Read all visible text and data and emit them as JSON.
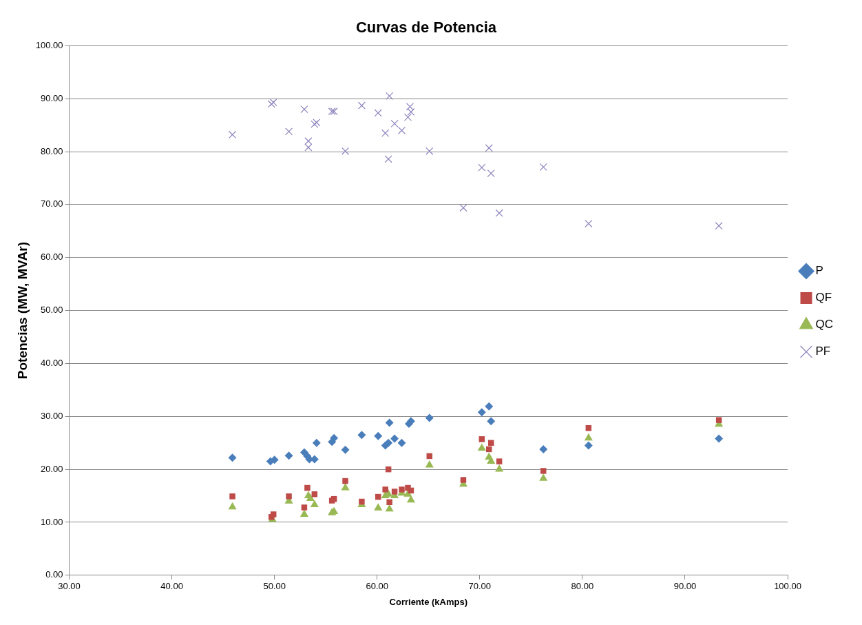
{
  "chart_data": {
    "type": "scatter",
    "title": "Curvas de Potencia",
    "xlabel": "Corriente (kAmps)",
    "ylabel": "Potencias (MW, MVAr)",
    "xlim": [
      30,
      100
    ],
    "xticks": [
      {
        "value": 30,
        "label": "30.00"
      },
      {
        "value": 40,
        "label": "40.00"
      },
      {
        "value": 50,
        "label": "50.00"
      },
      {
        "value": 60,
        "label": "60.00"
      },
      {
        "value": 70,
        "label": "70.00"
      },
      {
        "value": 80,
        "label": "80.00"
      },
      {
        "value": 90,
        "label": "90.00"
      },
      {
        "value": 100,
        "label": "100.00"
      }
    ],
    "ylim": [
      0,
      100
    ],
    "yticks": [
      {
        "value": 0,
        "label": "0.00"
      },
      {
        "value": 10,
        "label": "10.00"
      },
      {
        "value": 20,
        "label": "20.00"
      },
      {
        "value": 30,
        "label": "30.00"
      },
      {
        "value": 40,
        "label": "40.00"
      },
      {
        "value": 50,
        "label": "50.00"
      },
      {
        "value": 60,
        "label": "60.00"
      },
      {
        "value": 70,
        "label": "70.00"
      },
      {
        "value": 80,
        "label": "80.00"
      },
      {
        "value": 90,
        "label": "90.00"
      },
      {
        "value": 100,
        "label": "100.00"
      }
    ],
    "grid": "y",
    "legend": "right",
    "series": [
      {
        "name": "P",
        "color": "#4a7ebb",
        "marker": "diamond",
        "x": [
          45.9,
          49.6,
          50.0,
          51.4,
          52.9,
          53.2,
          53.4,
          53.9,
          54.1,
          55.6,
          55.8,
          56.9,
          58.5,
          60.1,
          60.8,
          61.1,
          61.2,
          61.7,
          62.4,
          63.1,
          63.3,
          65.1,
          70.2,
          70.9,
          71.1,
          76.2,
          80.6,
          93.3
        ],
        "values": [
          22.2,
          21.5,
          21.8,
          22.6,
          23.2,
          22.5,
          21.9,
          21.9,
          25.0,
          25.2,
          25.9,
          23.7,
          26.5,
          26.3,
          24.5,
          25.0,
          28.8,
          25.8,
          25.0,
          28.6,
          29.1,
          29.7,
          30.8,
          31.9,
          29.1,
          23.8,
          24.5,
          25.8
        ]
      },
      {
        "name": "QF",
        "color": "#be4b48",
        "marker": "square",
        "x": [
          45.9,
          49.7,
          49.9,
          51.4,
          52.9,
          53.2,
          53.9,
          55.6,
          55.8,
          56.9,
          58.5,
          60.1,
          60.8,
          61.1,
          61.2,
          61.7,
          62.4,
          63.0,
          63.3,
          65.1,
          68.4,
          70.2,
          70.9,
          71.1,
          71.9,
          76.2,
          80.6,
          93.3
        ],
        "values": [
          14.9,
          11.0,
          11.5,
          14.9,
          12.8,
          16.5,
          15.3,
          14.1,
          14.4,
          17.8,
          13.9,
          14.8,
          16.2,
          20.0,
          13.8,
          15.8,
          16.2,
          16.5,
          16.0,
          22.5,
          18.0,
          25.7,
          23.8,
          25.0,
          21.5,
          19.7,
          27.8,
          29.3
        ]
      },
      {
        "name": "QC",
        "color": "#98b954",
        "marker": "triangle",
        "x": [
          45.9,
          49.8,
          51.4,
          52.9,
          53.3,
          53.5,
          53.9,
          55.6,
          55.8,
          56.9,
          58.5,
          60.1,
          60.8,
          61.1,
          61.2,
          61.7,
          62.4,
          63.0,
          63.3,
          65.1,
          68.4,
          70.2,
          70.9,
          71.1,
          71.9,
          76.2,
          80.6,
          93.3
        ],
        "values": [
          12.9,
          10.5,
          14.0,
          11.5,
          15.0,
          14.5,
          13.3,
          11.8,
          12.0,
          16.5,
          13.3,
          12.7,
          15.0,
          15.3,
          12.5,
          15.0,
          15.5,
          15.3,
          14.2,
          20.8,
          17.2,
          24.0,
          22.3,
          21.5,
          20.0,
          18.3,
          25.9,
          28.5
        ]
      },
      {
        "name": "PF",
        "color": "#8c82bd",
        "marker": "cross",
        "x": [
          45.9,
          49.7,
          49.9,
          51.4,
          52.9,
          53.3,
          53.3,
          53.9,
          54.1,
          55.6,
          55.8,
          56.9,
          58.5,
          60.1,
          60.8,
          61.1,
          61.2,
          61.7,
          62.4,
          63.0,
          63.2,
          63.3,
          65.1,
          68.4,
          70.2,
          70.9,
          71.1,
          71.9,
          76.2,
          80.6,
          93.3
        ],
        "values": [
          83.2,
          89.0,
          89.3,
          83.8,
          88.0,
          82.0,
          80.8,
          85.2,
          85.5,
          87.6,
          87.6,
          80.1,
          88.7,
          87.3,
          83.5,
          78.6,
          90.5,
          85.3,
          84.0,
          86.5,
          88.5,
          87.5,
          80.1,
          69.4,
          77.0,
          80.7,
          75.9,
          68.4,
          77.1,
          66.4,
          66.0
        ]
      }
    ]
  }
}
